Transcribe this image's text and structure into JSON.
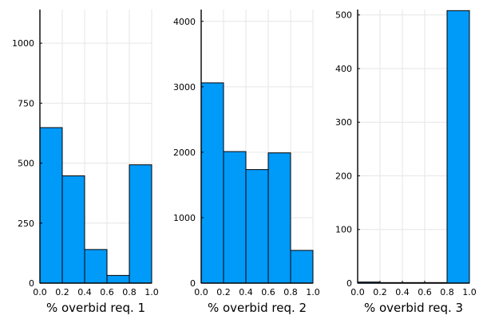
{
  "accent": "#009af9",
  "chart_data": [
    {
      "type": "bar",
      "xlabel": "% overbid req. 1",
      "bin_edges": [
        0.0,
        0.2,
        0.4,
        0.6,
        0.8,
        1.0
      ],
      "values": [
        648,
        447,
        140,
        32,
        493
      ],
      "xlim": [
        0,
        1
      ],
      "ylim": [
        0,
        1140
      ],
      "x_ticks": [
        0.0,
        0.2,
        0.4,
        0.6,
        0.8,
        1.0
      ],
      "x_tick_labels": [
        "0.0",
        "0.2",
        "0.4",
        "0.6",
        "0.8",
        "1.0"
      ],
      "y_ticks": [
        0,
        250,
        500,
        750,
        1000
      ],
      "y_tick_labels": [
        "0",
        "250",
        "500",
        "750",
        "1000"
      ],
      "grid": true,
      "legend": false
    },
    {
      "type": "bar",
      "xlabel": "% overbid req. 2",
      "bin_edges": [
        0.0,
        0.2,
        0.4,
        0.6,
        0.8,
        1.0
      ],
      "values": [
        3060,
        2010,
        1735,
        1990,
        500
      ],
      "xlim": [
        0,
        1
      ],
      "ylim": [
        0,
        4180
      ],
      "x_ticks": [
        0.0,
        0.2,
        0.4,
        0.6,
        0.8,
        1.0
      ],
      "x_tick_labels": [
        "0.0",
        "0.2",
        "0.4",
        "0.6",
        "0.8",
        "1.0"
      ],
      "y_ticks": [
        0,
        1000,
        2000,
        3000,
        4000
      ],
      "y_tick_labels": [
        "0",
        "1000",
        "2000",
        "3000",
        "4000"
      ],
      "grid": true,
      "legend": false
    },
    {
      "type": "bar",
      "xlabel": "% overbid req. 3",
      "bin_edges": [
        0.0,
        0.2,
        0.4,
        0.6,
        0.8,
        1.0
      ],
      "values": [
        2,
        1,
        1,
        1,
        508
      ],
      "xlim": [
        0,
        1
      ],
      "ylim": [
        0,
        510
      ],
      "x_ticks": [
        0.0,
        0.2,
        0.4,
        0.6,
        0.8,
        1.0
      ],
      "x_tick_labels": [
        "0.0",
        "0.2",
        "0.4",
        "0.6",
        "0.8",
        "1.0"
      ],
      "y_ticks": [
        0,
        100,
        200,
        300,
        400,
        500
      ],
      "y_tick_labels": [
        "0",
        "100",
        "200",
        "300",
        "400",
        "500"
      ],
      "grid": true,
      "legend": false
    }
  ]
}
